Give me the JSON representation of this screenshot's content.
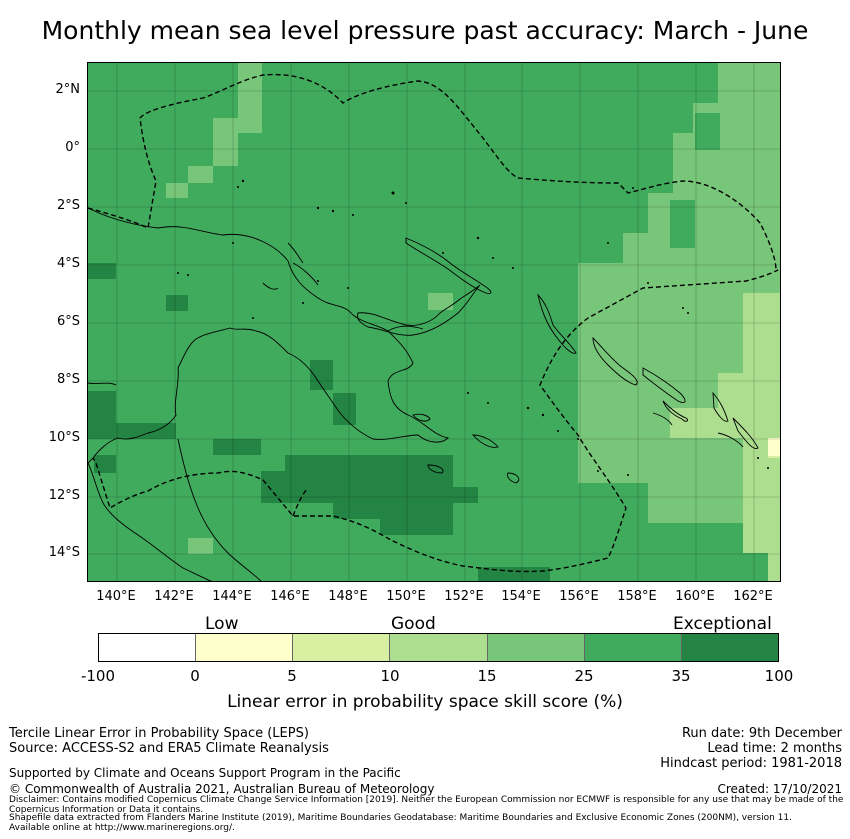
{
  "title": "Monthly mean sea level pressure past accuracy: March - June",
  "map": {
    "y_axis_labels": [
      "2°N",
      "0°",
      "2°S",
      "4°S",
      "6°S",
      "8°S",
      "10°S",
      "12°S",
      "14°S"
    ],
    "x_axis_labels": [
      "140°E",
      "142°E",
      "144°E",
      "146°E",
      "148°E",
      "150°E",
      "152°E",
      "154°E",
      "156°E",
      "158°E",
      "160°E",
      "162°E"
    ],
    "lon_range": [
      139,
      163
    ],
    "lat_range": [
      -15,
      3
    ]
  },
  "colorbar": {
    "categories": [
      "Low",
      "Good",
      "Exceptional"
    ],
    "ticks": [
      "-100",
      "0",
      "5",
      "10",
      "15",
      "25",
      "35",
      "100"
    ],
    "colors": [
      "#ffffff",
      "#ffffcc",
      "#d9f0a3",
      "#addd8e",
      "#78c679",
      "#41ab5d",
      "#238443"
    ],
    "title": "Linear error in probability space skill score (%)"
  },
  "footer": {
    "left_line1": "Tercile Linear Error in Probability Space (LEPS)",
    "left_line2": "Source: ACCESS-S2 and ERA5 Climate Reanalysis",
    "right_line1": "Run date: 9th December",
    "right_line2": "Lead time: 2 months",
    "right_line3": "Hindcast period: 1981-2018",
    "supported": "Supported by Climate and Oceans Support Program in the Pacific",
    "copyright": "© Commonwealth of Australia 2021, Australian Bureau of Meteorology",
    "created": "Created: 17/10/2021",
    "disclaimer": "Disclaimer: Contains modified Copernicus Climate Change Service Information [2019]. Neither the European Commission nor ECMWF is responsible for any use that may be made of the Copernicus Information or Data it contains.",
    "shapefile": "Shapefile data extracted from Flanders Marine Institute (2019), Maritime Boundaries Geodatabase: Maritime Boundaries and Exclusive Economic Zones (200NM), version 11. Available online at http://www.marineregions.org/."
  }
}
